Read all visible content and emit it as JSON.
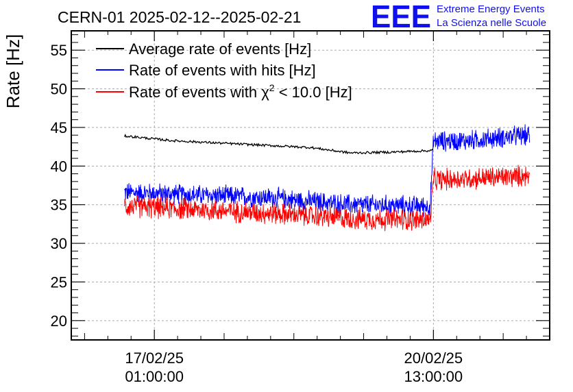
{
  "chart_data": {
    "type": "line",
    "title": "CERN-01 2025-02-12--2025-02-21",
    "ylabel": "Rate [Hz]",
    "xlabel": "",
    "ylim": [
      17.5,
      57.5
    ],
    "y_ticks": [
      "20",
      "25",
      "30",
      "35",
      "40",
      "45",
      "50",
      "55"
    ],
    "x_range_days": [
      "2025-02-16",
      "2025-02-22"
    ],
    "x_ticks": [
      {
        "date": "17/02/25",
        "time": "01:00:00",
        "at": "2025-02-17 01:00"
      },
      {
        "date": "20/02/25",
        "time": "13:00:00",
        "at": "2025-02-20 13:00"
      }
    ],
    "grid": true,
    "legend_position": "top-left",
    "series": [
      {
        "name": "Average rate of events [Hz]",
        "color": "#000000",
        "x": [
          "2025-02-16 16:00",
          "2025-02-17 06:00",
          "2025-02-18 00:00",
          "2025-02-19 00:00",
          "2025-02-19 12:00",
          "2025-02-20 00:00",
          "2025-02-20 12:00",
          "2025-02-20 13:00"
        ],
        "values": [
          43.9,
          43.3,
          42.9,
          42.4,
          41.7,
          41.8,
          42.0,
          42.1
        ]
      },
      {
        "name": "Rate of events with hits [Hz]",
        "color": "#0000ff",
        "x": [
          "2025-02-16 16:00",
          "2025-02-17 12:00",
          "2025-02-18 12:00",
          "2025-02-19 12:00",
          "2025-02-20 12:00",
          "2025-02-20 13:00",
          "2025-02-21 00:00",
          "2025-02-21 12:00",
          "2025-02-21 18:00"
        ],
        "values": [
          36.6,
          36.3,
          35.9,
          35.0,
          34.8,
          43.2,
          43.3,
          43.8,
          44.0
        ],
        "noise": 1.3
      },
      {
        "name": "Rate of events with χ² < 10.0 [Hz]",
        "legend_prefix": "Rate of events with ",
        "legend_chi": "χ",
        "legend_sup": "2",
        "legend_suffix": " < 10.0 [Hz]",
        "color": "#ff0000",
        "x": [
          "2025-02-16 16:00",
          "2025-02-17 12:00",
          "2025-02-18 12:00",
          "2025-02-19 12:00",
          "2025-02-20 12:00",
          "2025-02-20 13:00",
          "2025-02-21 00:00",
          "2025-02-21 12:00",
          "2025-02-21 18:00"
        ],
        "values": [
          34.8,
          34.4,
          33.9,
          33.2,
          33.0,
          38.2,
          38.4,
          38.6,
          38.8
        ],
        "noise": 1.4
      }
    ]
  },
  "logo": {
    "mark": "EEE",
    "line1": "Extreme Energy Events",
    "line2": "La Scienza nelle Scuole",
    "color": "#1010ee"
  }
}
